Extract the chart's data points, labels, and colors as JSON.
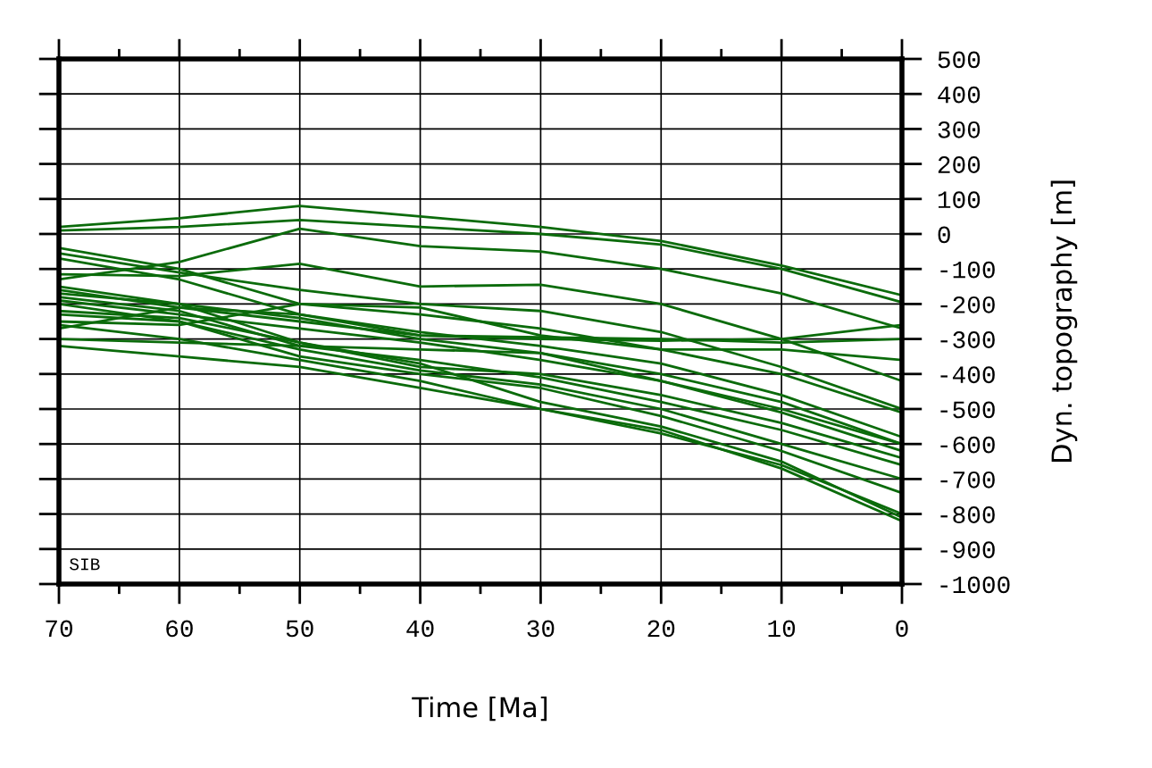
{
  "chart_data": {
    "type": "line",
    "xlabel": "Time [Ma]",
    "ylabel": "Dyn. topography [m]",
    "x": [
      70,
      60,
      50,
      40,
      30,
      20,
      10,
      0
    ],
    "xlim": [
      70,
      0
    ],
    "ylim": [
      -1000,
      500
    ],
    "xticks": [
      70,
      {
        "value": 65,
        "label": null
      },
      60,
      {
        "value": 55,
        "label": null
      },
      50,
      {
        "value": 45,
        "label": null
      },
      40,
      {
        "value": 35,
        "label": null
      },
      30,
      {
        "value": 25,
        "label": null
      },
      20,
      {
        "value": 15,
        "label": null
      },
      10,
      {
        "value": 5,
        "label": null
      },
      0
    ],
    "yticks": [
      -1000,
      -900,
      -800,
      -700,
      -600,
      -500,
      -400,
      -300,
      -200,
      -100,
      0,
      100,
      200,
      300,
      400,
      500
    ],
    "grid": true,
    "legend": false,
    "marker": "none",
    "line_style": "solid",
    "annotations": [
      "SIB"
    ],
    "series": [
      {
        "color": "#0b6b0b",
        "values": [
          20,
          45,
          80,
          50,
          20,
          -20,
          -90,
          -175
        ]
      },
      {
        "color": "#0b6b0b",
        "values": [
          10,
          20,
          40,
          20,
          0,
          -30,
          -100,
          -195
        ]
      },
      {
        "color": "#0b6b0b",
        "values": [
          -130,
          -80,
          15,
          -35,
          -50,
          -100,
          -170,
          -270
        ]
      },
      {
        "color": "#0b6b0b",
        "values": [
          -115,
          -120,
          -85,
          -150,
          -145,
          -200,
          -300,
          -420
        ]
      },
      {
        "color": "#0b6b0b",
        "values": [
          -40,
          -100,
          -200,
          -230,
          -270,
          -330,
          -400,
          -510
        ]
      },
      {
        "color": "#0b6b0b",
        "values": [
          -55,
          -110,
          -160,
          -200,
          -220,
          -280,
          -380,
          -500
        ]
      },
      {
        "color": "#0b6b0b",
        "values": [
          -70,
          -130,
          -230,
          -290,
          -300,
          -305,
          -300,
          -260
        ]
      },
      {
        "color": "#0b6b0b",
        "values": [
          -160,
          -210,
          -250,
          -290,
          -295,
          -300,
          -310,
          -300
        ]
      },
      {
        "color": "#0b6b0b",
        "values": [
          -250,
          -260,
          -200,
          -210,
          -290,
          -330,
          -330,
          -360
        ]
      },
      {
        "color": "#0b6b0b",
        "values": [
          -300,
          -310,
          -320,
          -330,
          -340,
          -400,
          -480,
          -600
        ]
      },
      {
        "color": "#0b6b0b",
        "values": [
          -170,
          -200,
          -240,
          -300,
          -340,
          -420,
          -500,
          -600
        ]
      },
      {
        "color": "#0b6b0b",
        "values": [
          -190,
          -230,
          -270,
          -310,
          -360,
          -420,
          -510,
          -620
        ]
      },
      {
        "color": "#0b6b0b",
        "values": [
          -150,
          -200,
          -310,
          -380,
          -400,
          -460,
          -540,
          -640
        ]
      },
      {
        "color": "#0b6b0b",
        "values": [
          -180,
          -220,
          -320,
          -360,
          -410,
          -480,
          -560,
          -660
        ]
      },
      {
        "color": "#0b6b0b",
        "values": [
          -230,
          -250,
          -330,
          -390,
          -430,
          -500,
          -600,
          -700
        ]
      },
      {
        "color": "#0b6b0b",
        "values": [
          -200,
          -250,
          -350,
          -400,
          -440,
          -520,
          -620,
          -740
        ]
      },
      {
        "color": "#0b6b0b",
        "values": [
          -260,
          -300,
          -360,
          -420,
          -500,
          -570,
          -660,
          -800
        ]
      },
      {
        "color": "#0b6b0b",
        "values": [
          -320,
          -350,
          -380,
          -440,
          -500,
          -560,
          -670,
          -820
        ]
      },
      {
        "color": "#0b6b0b",
        "values": [
          -220,
          -240,
          -310,
          -370,
          -480,
          -550,
          -650,
          -810
        ]
      },
      {
        "color": "#0b6b0b",
        "values": [
          -270,
          -210,
          -230,
          -280,
          -320,
          -370,
          -460,
          -580
        ]
      }
    ]
  }
}
